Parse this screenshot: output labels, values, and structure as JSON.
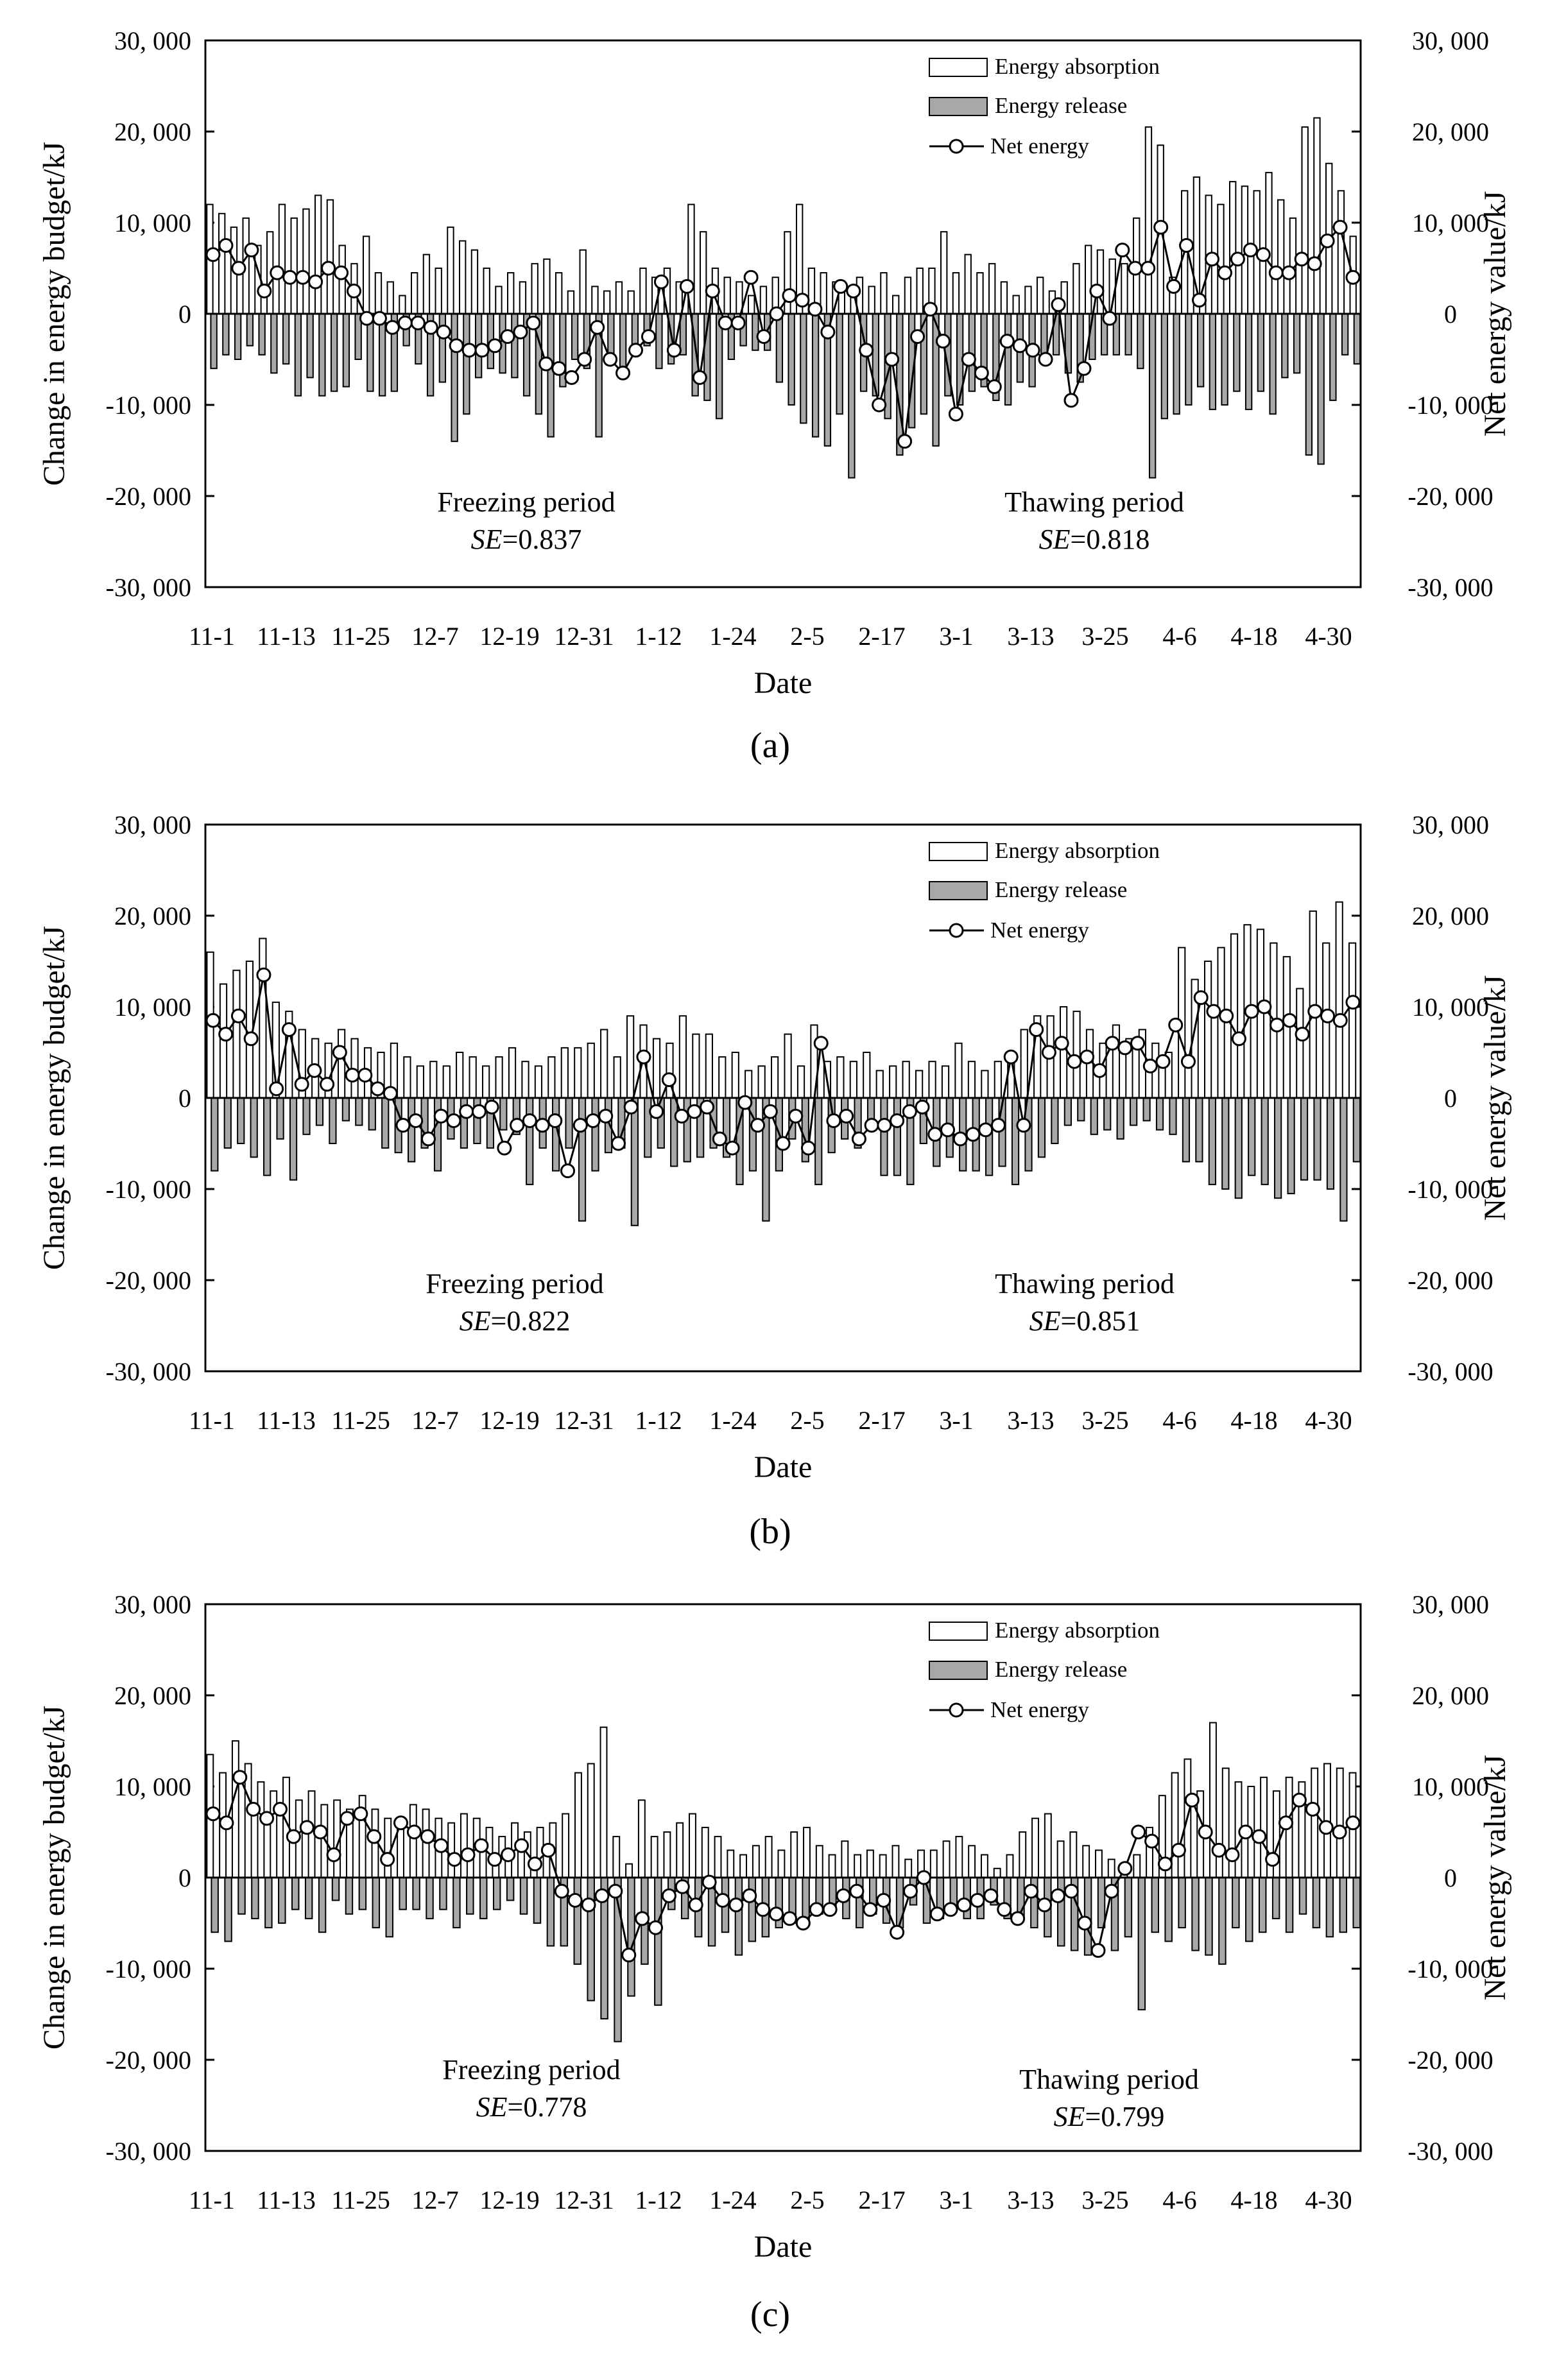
{
  "chart_data": [
    {
      "panel": "a",
      "caption": "(a)",
      "type": "bar",
      "ylabel": "Change in energy budget/kJ",
      "y2label": "Net energy value/kJ",
      "xlabel": "Date",
      "ylim": [
        -30000,
        30000
      ],
      "yticks": [
        "30, 000",
        "20, 000",
        "10, 000",
        "0",
        "-10, 000",
        "-20, 000",
        "-30, 000"
      ],
      "y2ticks": [
        "30, 000",
        "20, 000",
        "10, 000",
        "0",
        "-10, 000",
        "-20, 000",
        "-30, 000"
      ],
      "xticks": [
        "11-1",
        "11-13",
        "11-25",
        "12-7",
        "12-19",
        "12-31",
        "1-12",
        "1-24",
        "2-5",
        "2-17",
        "3-1",
        "3-13",
        "3-25",
        "4-6",
        "4-18",
        "4-30"
      ],
      "legend": [
        "Energy absorption",
        "Energy release",
        "Net energy"
      ],
      "annotations": {
        "freeze": "Freezing period",
        "freeze_se": "0.837",
        "thaw": "Thawing period",
        "thaw_se": "0.818",
        "se_label": "SE",
        "se_eq": "="
      },
      "series": [
        {
          "name": "Energy absorption",
          "values": [
            12000,
            11000,
            9500,
            10500,
            7500,
            9000,
            12000,
            10500,
            11500,
            13000,
            12500,
            7500,
            5500,
            8500,
            4500,
            3500,
            2000,
            4500,
            6500,
            5000,
            9500,
            8000,
            7000,
            5000,
            3000,
            4500,
            3500,
            5500,
            6000,
            4500,
            2500,
            7000,
            3000,
            2500,
            3500,
            2500,
            5000,
            4000,
            5000,
            3500,
            12000,
            9000,
            5000,
            4000,
            3500,
            2000,
            3000,
            4000,
            9000,
            12000,
            5000,
            4500,
            3500,
            2500,
            4000,
            3000,
            4500,
            2000,
            4000,
            5000,
            5000,
            9000,
            4500,
            6500,
            4500,
            5500,
            3500,
            2000,
            3000,
            4000,
            2500,
            3500,
            5500,
            7500,
            7000,
            6000,
            5500,
            10500,
            20500,
            18500,
            4000,
            13500,
            15000,
            13000,
            12000,
            14500,
            14000,
            13500,
            15500,
            12500,
            10500,
            20500,
            21500,
            16500,
            13500,
            8500
          ]
        },
        {
          "name": "Energy release",
          "values": [
            -6000,
            -4500,
            -5000,
            -3500,
            -4500,
            -6500,
            -5500,
            -9000,
            -7000,
            -9000,
            -8500,
            -8000,
            -5000,
            -8500,
            -9000,
            -8500,
            -3500,
            -5500,
            -9000,
            -7500,
            -14000,
            -11000,
            -7000,
            -6000,
            -6500,
            -7000,
            -9000,
            -11000,
            -13500,
            -8000,
            -5000,
            -6000,
            -13500,
            -4500,
            -6000,
            -4500,
            -3500,
            -6000,
            -5500,
            -4500,
            -9000,
            -9500,
            -11500,
            -5000,
            -3500,
            -4000,
            -4000,
            -7500,
            -10000,
            -12000,
            -13500,
            -14500,
            -11000,
            -18000,
            -8500,
            -9000,
            -11500,
            -15500,
            -12500,
            -11000,
            -14500,
            -9000,
            -10000,
            -8500,
            -8000,
            -9500,
            -10000,
            -7500,
            -8000,
            -5500,
            -4500,
            -6500,
            -7500,
            -5000,
            -4500,
            -4500,
            -4500,
            -6000,
            -18000,
            -11500,
            -11000,
            -10000,
            -8000,
            -10500,
            -10000,
            -8500,
            -10500,
            -8500,
            -11000,
            -7000,
            -6500,
            -15500,
            -16500,
            -9500,
            -4500,
            -5500
          ]
        },
        {
          "name": "Net energy",
          "values": [
            6500,
            7500,
            5000,
            7000,
            2500,
            4500,
            4000,
            4000,
            3500,
            5000,
            4500,
            2500,
            -500,
            -500,
            -1500,
            -1000,
            -1000,
            -1500,
            -2000,
            -3500,
            -4000,
            -4000,
            -3500,
            -2500,
            -2000,
            -1000,
            -5500,
            -6000,
            -7000,
            -5000,
            -1500,
            -5000,
            -6500,
            -4000,
            -2500,
            3500,
            -4000,
            3000,
            -7000,
            2500,
            -1000,
            -1000,
            4000,
            -2500,
            0,
            2000,
            1500,
            500,
            -2000,
            3000,
            2500,
            -4000,
            -10000,
            -5000,
            -14000,
            -2500,
            500,
            -3000,
            -11000,
            -5000,
            -6500,
            -8000,
            -3000,
            -3500,
            -4000,
            -5000,
            1000,
            -9500,
            -6000,
            2500,
            -500,
            7000,
            5000,
            5000,
            9500,
            3000,
            7500,
            1500,
            6000,
            4500,
            6000,
            7000,
            6500,
            4500,
            4500,
            6000,
            5500,
            8000,
            9500,
            4000
          ]
        }
      ]
    },
    {
      "panel": "b",
      "caption": "(b)",
      "type": "bar",
      "ylabel": "Change in energy budget/kJ",
      "y2label": "Net energy value/kJ",
      "xlabel": "Date",
      "ylim": [
        -30000,
        30000
      ],
      "yticks": [
        "30, 000",
        "20, 000",
        "10, 000",
        "0",
        "-10, 000",
        "-20, 000",
        "-30, 000"
      ],
      "y2ticks": [
        "30, 000",
        "20, 000",
        "10, 000",
        "0",
        "-10, 000",
        "-20, 000",
        "-30, 000"
      ],
      "xticks": [
        "11-1",
        "11-13",
        "11-25",
        "12-7",
        "12-19",
        "12-31",
        "1-12",
        "1-24",
        "2-5",
        "2-17",
        "3-1",
        "3-13",
        "3-25",
        "4-6",
        "4-18",
        "4-30"
      ],
      "legend": [
        "Energy absorption",
        "Energy release",
        "Net energy"
      ],
      "annotations": {
        "freeze": "Freezing period",
        "freeze_se": "0.822",
        "thaw": "Thawing period",
        "thaw_se": "0.851",
        "se_label": "SE",
        "se_eq": "="
      },
      "series": [
        {
          "name": "Energy absorption",
          "values": [
            16000,
            12500,
            14000,
            15000,
            17500,
            10500,
            9500,
            7500,
            6500,
            6000,
            7500,
            6500,
            5500,
            5000,
            6000,
            4500,
            3500,
            4000,
            3500,
            5000,
            4500,
            3500,
            4500,
            5500,
            4000,
            3500,
            4500,
            5500,
            5500,
            6000,
            7500,
            4500,
            9000,
            8000,
            6500,
            6000,
            9000,
            7000,
            7000,
            4500,
            5000,
            3000,
            3500,
            4500,
            7000,
            3500,
            8000,
            4000,
            4500,
            4000,
            5000,
            3000,
            3500,
            4000,
            3000,
            4000,
            3500,
            6000,
            4000,
            3000,
            4000,
            4500,
            7500,
            9000,
            9000,
            10000,
            9500,
            7500,
            6000,
            8000,
            6500,
            7500,
            6000,
            5000,
            16500,
            13000,
            15000,
            16500,
            18000,
            19000,
            18500,
            17000,
            15500,
            12000,
            20500,
            17000,
            21500,
            17000
          ]
        },
        {
          "name": "Energy release",
          "values": [
            -8000,
            -5500,
            -5000,
            -6500,
            -8500,
            -4500,
            -9000,
            -4000,
            -3000,
            -5000,
            -2500,
            -3000,
            -3500,
            -5500,
            -6000,
            -7000,
            -5500,
            -8000,
            -4500,
            -5500,
            -5000,
            -5500,
            -3500,
            -4000,
            -9500,
            -5500,
            -8000,
            -5500,
            -13500,
            -8000,
            -6000,
            -5500,
            -14000,
            -6500,
            -5500,
            -7500,
            -7000,
            -6500,
            -5500,
            -6500,
            -9500,
            -8000,
            -13500,
            -8000,
            -4500,
            -7000,
            -9500,
            -6000,
            -4500,
            -5500,
            -3500,
            -8500,
            -8500,
            -9500,
            -5000,
            -7500,
            -6500,
            -8000,
            -8000,
            -8500,
            -7500,
            -9500,
            -8000,
            -6500,
            -5000,
            -3000,
            -2500,
            -4000,
            -3500,
            -4500,
            -3000,
            -2500,
            -3500,
            -4000,
            -7000,
            -7000,
            -9500,
            -10000,
            -11000,
            -8500,
            -9500,
            -11000,
            -10500,
            -9000,
            -9000,
            -10000,
            -13500,
            -7000
          ]
        },
        {
          "name": "Net energy",
          "values": [
            8500,
            7000,
            9000,
            6500,
            13500,
            1000,
            7500,
            1500,
            3000,
            1500,
            5000,
            2500,
            2500,
            1000,
            500,
            -3000,
            -2500,
            -4500,
            -2000,
            -2500,
            -1500,
            -1500,
            -1000,
            -5500,
            -3000,
            -2500,
            -3000,
            -2500,
            -8000,
            -3000,
            -2500,
            -2000,
            -5000,
            -1000,
            4500,
            -1500,
            2000,
            -2000,
            -1500,
            -1000,
            -4500,
            -5500,
            -500,
            -3000,
            -1500,
            -5000,
            -2000,
            -5500,
            6000,
            -2500,
            -2000,
            -4500,
            -3000,
            -3000,
            -2500,
            -1500,
            -1000,
            -4000,
            -3500,
            -4500,
            -4000,
            -3500,
            -3000,
            4500,
            -3000,
            7500,
            5000,
            6000,
            4000,
            4500,
            3000,
            6000,
            5500,
            6000,
            3500,
            4000,
            8000,
            4000,
            11000,
            9500,
            9000,
            6500,
            9500,
            10000,
            8000,
            8500,
            7000,
            9500,
            9000,
            8500,
            10500
          ]
        }
      ]
    },
    {
      "panel": "c",
      "caption": "(c)",
      "type": "bar",
      "ylabel": "Change in energy budget/kJ",
      "y2label": "Net energy value/kJ",
      "xlabel": "Date",
      "ylim": [
        -30000,
        30000
      ],
      "yticks": [
        "30, 000",
        "20, 000",
        "10, 000",
        "0",
        "-10, 000",
        "-20, 000",
        "-30, 000"
      ],
      "y2ticks": [
        "30, 000",
        "20, 000",
        "10, 000",
        "0",
        "-10, 000",
        "-20, 000",
        "-30, 000"
      ],
      "xticks": [
        "11-1",
        "11-13",
        "11-25",
        "12-7",
        "12-19",
        "12-31",
        "1-12",
        "1-24",
        "2-5",
        "2-17",
        "3-1",
        "3-13",
        "3-25",
        "4-6",
        "4-18",
        "4-30"
      ],
      "legend": [
        "Energy absorption",
        "Energy release",
        "Net energy"
      ],
      "annotations": {
        "freeze": "Freezing period",
        "freeze_se": "0.778",
        "thaw": "Thawing period",
        "thaw_se": "0.799",
        "se_label": "SE",
        "se_eq": "="
      },
      "series": [
        {
          "name": "Energy absorption",
          "values": [
            13500,
            11500,
            15000,
            12500,
            10500,
            9500,
            11000,
            8500,
            9500,
            8000,
            8500,
            7500,
            9000,
            7500,
            6500,
            6000,
            8000,
            7500,
            6500,
            6000,
            7000,
            6500,
            5500,
            4500,
            6000,
            5000,
            5500,
            6000,
            7000,
            11500,
            12500,
            16500,
            4500,
            1500,
            8500,
            4500,
            5000,
            6000,
            7000,
            5500,
            4500,
            3000,
            2500,
            3500,
            4500,
            3000,
            5000,
            5500,
            3500,
            2500,
            4000,
            2500,
            3000,
            2500,
            3500,
            2000,
            3000,
            3000,
            4000,
            4500,
            3500,
            2500,
            1000,
            2500,
            5000,
            6500,
            7000,
            4000,
            5000,
            3500,
            3000,
            2000,
            1500,
            2500,
            5500,
            9000,
            11500,
            13000,
            9500,
            17000,
            12000,
            10500,
            10000,
            11000,
            9500,
            11000,
            10500,
            12000,
            12500,
            12000,
            11500
          ]
        },
        {
          "name": "Energy release",
          "values": [
            -6000,
            -7000,
            -4000,
            -4500,
            -5500,
            -5000,
            -3500,
            -4500,
            -6000,
            -2500,
            -4000,
            -3500,
            -5500,
            -6500,
            -3500,
            -3500,
            -4500,
            -3500,
            -5500,
            -4000,
            -4500,
            -3500,
            -2500,
            -4000,
            -5000,
            -7500,
            -7500,
            -9500,
            -13500,
            -15500,
            -18000,
            -13000,
            -9500,
            -14000,
            -3500,
            -4500,
            -6500,
            -7500,
            -6000,
            -8500,
            -7000,
            -6500,
            -5500,
            -5000,
            -5000,
            -4000,
            -3500,
            -4500,
            -5500,
            -4000,
            -5000,
            -5500,
            -3000,
            -5000,
            -4500,
            -3500,
            -4500,
            -4500,
            -3000,
            -4500,
            -4500,
            -5500,
            -6500,
            -7500,
            -8000,
            -8500,
            -5500,
            -8000,
            -6500,
            -14500,
            -6000,
            -7000,
            -5500,
            -8000,
            -8500,
            -9500,
            -5500,
            -7000,
            -6000,
            -4500,
            -6000,
            -4000,
            -5500,
            -6500,
            -6000,
            -5500
          ]
        },
        {
          "name": "Net energy",
          "values": [
            7000,
            6000,
            11000,
            7500,
            6500,
            7500,
            4500,
            5500,
            5000,
            2500,
            6500,
            7000,
            4500,
            2000,
            6000,
            5000,
            4500,
            3500,
            2000,
            2500,
            3500,
            2000,
            2500,
            3500,
            1500,
            3000,
            -1500,
            -2500,
            -3000,
            -2000,
            -1500,
            -8500,
            -4500,
            -5500,
            -2000,
            -1000,
            -3000,
            -500,
            -2500,
            -3000,
            -2000,
            -3500,
            -4000,
            -4500,
            -5000,
            -3500,
            -3500,
            -2000,
            -1500,
            -3500,
            -2500,
            -6000,
            -1500,
            0,
            -4000,
            -3500,
            -3000,
            -2500,
            -2000,
            -3500,
            -4500,
            -1500,
            -3000,
            -2000,
            -1500,
            -5000,
            -8000,
            -1500,
            1000,
            5000,
            4000,
            1500,
            3000,
            8500,
            5000,
            3000,
            2500,
            5000,
            4500,
            2000,
            6000,
            8500,
            7500,
            5500,
            5000,
            6000
          ]
        }
      ]
    }
  ]
}
